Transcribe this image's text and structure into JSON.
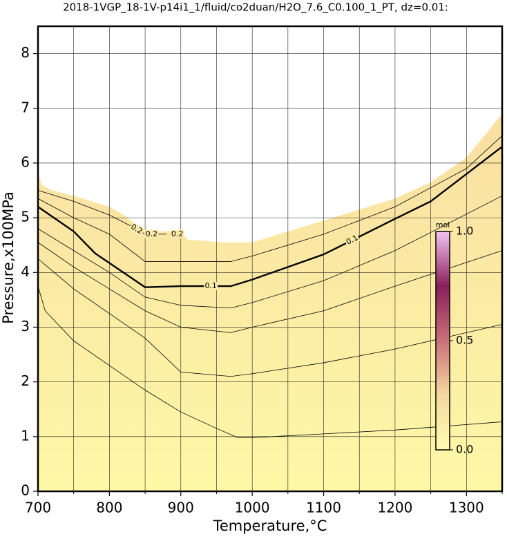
{
  "chart_data": {
    "type": "contour",
    "title": "2018-1VGP_18-1V-p14i1_1/fluid/co2duan/H2O_7.6_C0.100_1_PT, dz=0.01:",
    "x_label": "Temperature,°C",
    "y_label": "Pressure,x100MPa",
    "xlim": [
      700,
      1350
    ],
    "ylim": [
      0,
      8.5
    ],
    "xticks": [
      700,
      800,
      900,
      1000,
      1100,
      1200,
      1300
    ],
    "xminorticks": [
      750,
      850,
      950,
      1050,
      1150,
      1250,
      1350
    ],
    "yticks": [
      0,
      1,
      2,
      3,
      4,
      5,
      6,
      7,
      8
    ],
    "grid": true,
    "boundary": {
      "x": [
        700,
        705,
        720,
        750,
        800,
        820,
        850,
        900,
        910,
        960,
        1000,
        1050,
        1100,
        1150,
        1200,
        1250,
        1300,
        1350
      ],
      "y": [
        5.85,
        5.6,
        5.5,
        5.4,
        5.2,
        5.05,
        4.75,
        4.75,
        4.6,
        4.55,
        4.55,
        4.75,
        4.95,
        5.15,
        5.35,
        5.65,
        6.1,
        6.9
      ]
    },
    "contours": [
      {
        "level": 0.1,
        "x": [
          700,
          750,
          780,
          850,
          900,
          970,
          1000,
          1100,
          1200,
          1250,
          1300,
          1350
        ],
        "y": [
          5.2,
          4.75,
          4.35,
          3.73,
          3.75,
          3.75,
          3.87,
          4.33,
          4.98,
          5.3,
          5.8,
          6.3
        ]
      },
      {
        "level": 0.2,
        "x": [
          700,
          750,
          800,
          830,
          850,
          880
        ],
        "y": [
          5.5,
          5.3,
          5.05,
          4.85,
          4.7,
          4.7
        ]
      },
      {
        "x": [
          700,
          750,
          800,
          850,
          970,
          1000,
          1100,
          1200,
          1300,
          1350
        ],
        "y": [
          5.35,
          5.0,
          4.7,
          4.2,
          4.2,
          4.3,
          4.7,
          5.2,
          5.9,
          6.5
        ]
      },
      {
        "x": [
          700,
          750,
          800,
          850,
          900,
          970,
          1000,
          1100,
          1200,
          1350
        ],
        "y": [
          4.8,
          4.4,
          4.0,
          3.55,
          3.4,
          3.35,
          3.45,
          3.85,
          4.4,
          5.4
        ]
      },
      {
        "x": [
          700,
          750,
          800,
          850,
          900,
          970,
          1000,
          1100,
          1200,
          1350
        ],
        "y": [
          4.55,
          4.1,
          3.7,
          3.3,
          3.0,
          2.9,
          3.0,
          3.3,
          3.75,
          4.4
        ]
      },
      {
        "x": [
          700,
          750,
          800,
          850,
          900,
          970,
          1000,
          1100,
          1200,
          1350
        ],
        "y": [
          4.25,
          3.7,
          3.25,
          2.8,
          2.18,
          2.1,
          2.15,
          2.35,
          2.6,
          3.05
        ]
      },
      {
        "x": [
          700,
          710,
          750,
          800,
          850,
          900,
          950,
          980,
          1000,
          1100,
          1200,
          1350
        ],
        "y": [
          3.75,
          3.3,
          2.75,
          2.3,
          1.85,
          1.45,
          1.15,
          0.98,
          0.98,
          1.05,
          1.12,
          1.27
        ]
      }
    ],
    "colorbar": {
      "label": "mol",
      "clim": [
        0,
        1
      ],
      "ticks": [
        {
          "value": 0,
          "label": "0.0"
        },
        {
          "value": 0.5,
          "label": "0.5"
        },
        {
          "value": 1,
          "label": "1.0"
        }
      ],
      "colors": [
        "#fffdb0",
        "#f5d9a0",
        "#c9707a",
        "#8a1f5a",
        "#f4c4f4"
      ]
    },
    "fill_colors": [
      "#fdf8a6",
      "#f9d9a2"
    ]
  }
}
